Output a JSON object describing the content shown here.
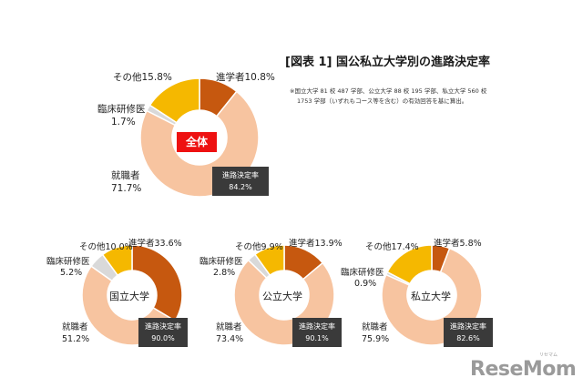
{
  "title": "[図表 1] 国公私立大学別の進路決定率",
  "note_lines": [
    "※国立大学 81 校 487 学部、公立大学 88 校 195 学部、私立大学 560 校",
    "1753 学部（いずれもコース等を含む）の有効回答を基に算出。"
  ],
  "colors": {
    "shingaku": "#c6580f",
    "rinsho": "#d9d9d9",
    "sonota": "#f5b800",
    "shushoku": "#f7c4a0",
    "rate_box": "#3a3a3a",
    "center_red": "#ee1111"
  },
  "logo": {
    "text": "ReseMom",
    "sub": "リセマム"
  },
  "chart_data": [
    {
      "type": "pie",
      "center": "全体",
      "categories": [
        "進学者",
        "就職者",
        "臨床研修医",
        "その他"
      ],
      "values": [
        10.8,
        71.7,
        1.7,
        15.8
      ],
      "labels": {
        "shingaku": "進学者10.8%",
        "rinsho": "臨床研修医",
        "rinsho_pct": "1.7%",
        "sonota": "その他15.8%",
        "shushoku": "就職者",
        "shushoku_pct": "71.7%"
      },
      "rate_label": "進路決定率",
      "rate_value": "84.2%"
    },
    {
      "type": "pie",
      "center": "国立大学",
      "categories": [
        "進学者",
        "就職者",
        "臨床研修医",
        "その他"
      ],
      "values": [
        33.6,
        51.2,
        5.2,
        10.0
      ],
      "labels": {
        "shingaku": "進学者33.6%",
        "rinsho": "臨床研修医",
        "rinsho_pct": "5.2%",
        "sonota": "その他10.0%",
        "shushoku": "就職者",
        "shushoku_pct": "51.2%"
      },
      "rate_label": "進路決定率",
      "rate_value": "90.0%"
    },
    {
      "type": "pie",
      "center": "公立大学",
      "categories": [
        "進学者",
        "就職者",
        "臨床研修医",
        "その他"
      ],
      "values": [
        13.9,
        73.4,
        2.8,
        9.9
      ],
      "labels": {
        "shingaku": "進学者13.9%",
        "rinsho": "臨床研修医",
        "rinsho_pct": "2.8%",
        "sonota": "その他9.9%",
        "shushoku": "就職者",
        "shushoku_pct": "73.4%"
      },
      "rate_label": "進路決定率",
      "rate_value": "90.1%"
    },
    {
      "type": "pie",
      "center": "私立大学",
      "categories": [
        "進学者",
        "就職者",
        "臨床研修医",
        "その他"
      ],
      "values": [
        5.8,
        75.9,
        0.9,
        17.4
      ],
      "labels": {
        "shingaku": "進学者5.8%",
        "rinsho": "臨床研修医",
        "rinsho_pct": "0.9%",
        "sonota": "その他17.4%",
        "shushoku": "就職者",
        "shushoku_pct": "75.9%"
      },
      "rate_label": "進路決定率",
      "rate_value": "82.6%"
    }
  ]
}
